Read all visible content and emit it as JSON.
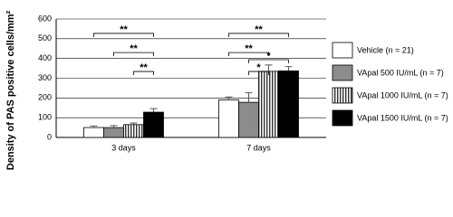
{
  "chart_data": {
    "type": "bar",
    "y_label": "Density of PAS positive cells/mm²",
    "categories": [
      "3 days",
      "7 days"
    ],
    "series": [
      {
        "name": "Vehicle (n = 21)",
        "color": "#ffffff",
        "values": [
          50,
          190
        ],
        "errors": [
          8,
          15
        ]
      },
      {
        "name": "VApal 500 IU/mL (n = 7)",
        "color": "#8c8c8c",
        "values": [
          50,
          178
        ],
        "errors": [
          10,
          48
        ]
      },
      {
        "name": "VApal 1000 IU/mL (n = 7)",
        "color": "#ffffff",
        "hatch": "vertical",
        "values": [
          65,
          335
        ],
        "errors": [
          8,
          32
        ]
      },
      {
        "name": "VApal 1500 IU/mL (n = 7)",
        "color": "#000000",
        "values": [
          128,
          337
        ],
        "errors": [
          18,
          22
        ]
      }
    ],
    "brackets": [
      {
        "group": 0,
        "from": 0,
        "to": 3,
        "y": 527,
        "label": "**"
      },
      {
        "group": 0,
        "from": 1,
        "to": 3,
        "y": 430,
        "label": "**"
      },
      {
        "group": 0,
        "from": 2,
        "to": 3,
        "y": 334,
        "label": "**"
      },
      {
        "group": 1,
        "from": 0,
        "to": 3,
        "y": 527,
        "label": "**"
      },
      {
        "group": 1,
        "from": 0,
        "to": 2,
        "y": 430,
        "label": "**"
      },
      {
        "group": 1,
        "from": 1,
        "to": 3,
        "y": 394,
        "label": "*"
      },
      {
        "group": 1,
        "from": 1,
        "to": 2,
        "y": 334,
        "label": "*"
      }
    ],
    "ylim": [
      0,
      600
    ],
    "yticks": [
      0,
      100,
      200,
      300,
      400,
      500,
      600
    ],
    "grid": true
  }
}
